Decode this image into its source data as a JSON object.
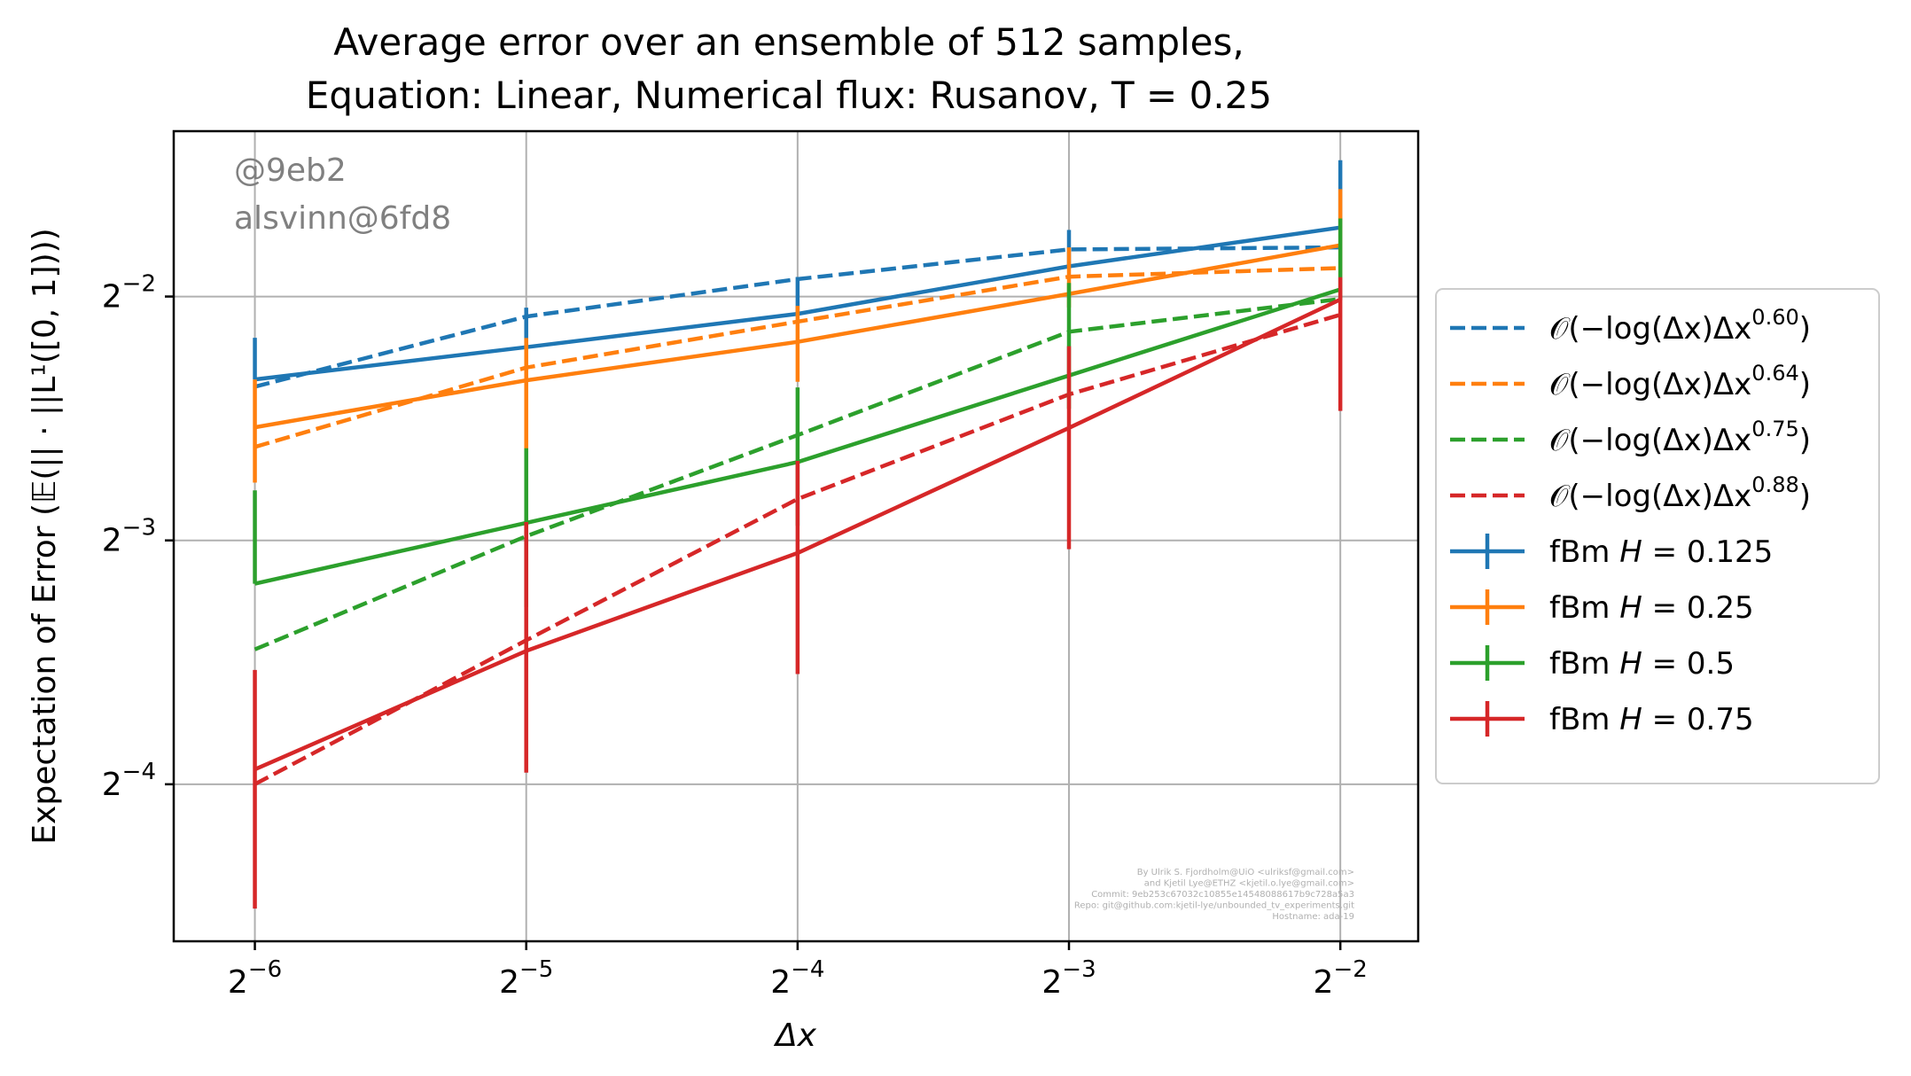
{
  "chart_data": {
    "type": "line",
    "title_lines": [
      "Average error over an ensemble of 512 samples,",
      "Equation: Linear, Numerical flux: Rusanov, T = 0.25"
    ],
    "xlabel": "Δx",
    "ylabel": "Expectation of Error (𝔼(|| · ||L¹([0, 1])))",
    "x_scale": "log2",
    "y_scale": "log2",
    "x_ticks": [
      {
        "value": 0.015625,
        "base": "2",
        "exp": "−6"
      },
      {
        "value": 0.03125,
        "base": "2",
        "exp": "−5"
      },
      {
        "value": 0.0625,
        "base": "2",
        "exp": "−4"
      },
      {
        "value": 0.125,
        "base": "2",
        "exp": "−3"
      },
      {
        "value": 0.25,
        "base": "2",
        "exp": "−2"
      }
    ],
    "y_ticks": [
      {
        "value": 0.25,
        "base": "2",
        "exp": "−2"
      },
      {
        "value": 0.125,
        "base": "2",
        "exp": "−3"
      },
      {
        "value": 0.0625,
        "base": "2",
        "exp": "−4"
      }
    ],
    "xlim": [
      0.0127,
      0.305
    ],
    "ylim": [
      0.04,
      0.4
    ],
    "grid": true,
    "legend_placement": "right outside",
    "annotations": [
      "@9eb2",
      "alsvinn@6fd8"
    ],
    "credits": [
      "By Ulrik S. Fjordholm@UiO <ulriksf@gmail.com>",
      "and Kjetil Lye@ETHZ <kjetil.o.lye@gmail.com>",
      "Commit: 9eb253c67032c10855e14548088617b9c728a5a3",
      "Repo: git@github.com:kjetil-lye/unbounded_tv_experiments.git",
      "Hostname: ada-19"
    ],
    "x": [
      0.015625,
      0.03125,
      0.0625,
      0.125,
      0.25
    ],
    "series": [
      {
        "name": "𝒪(−log(Δx)Δx",
        "name_sup": "0.60",
        "name_tail": ")",
        "color": "#1f77b4",
        "style": "dashed",
        "values": [
          0.1935,
          0.2362,
          0.2627,
          0.2858,
          0.2875
        ]
      },
      {
        "name": "𝒪(−log(Δx)Δx",
        "name_sup": "0.64",
        "name_tail": ")",
        "color": "#ff7f0e",
        "style": "dashed",
        "values": [
          0.163,
          0.2043,
          0.2328,
          0.2645,
          0.2711
        ]
      },
      {
        "name": "𝒪(−log(Δx)Δx",
        "name_sup": "0.75",
        "name_tail": ")",
        "color": "#2ca02c",
        "style": "dashed",
        "values": [
          0.0917,
          0.1265,
          0.1686,
          0.2262,
          0.2483
        ]
      },
      {
        "name": "𝒪(−log(Δx)Δx",
        "name_sup": "0.88",
        "name_tail": ")",
        "color": "#d62728",
        "style": "dashed",
        "values": [
          0.0625,
          0.0941,
          0.1406,
          0.1893,
          0.2374
        ]
      },
      {
        "name": "fBm ",
        "name_italic": "H",
        "name_tail": " = 0.125",
        "color": "#1f77b4",
        "style": "solid",
        "values": [
          0.1975,
          0.2165,
          0.238,
          0.2724,
          0.3042
        ],
        "yerr_low": [
          0.1975,
          0.2165,
          0.238,
          0.2724,
          0.3042
        ],
        "yerr_high": [
          0.2223,
          0.2422,
          0.2643,
          0.3021,
          0.3683
        ]
      },
      {
        "name": "fBm ",
        "name_italic": "H",
        "name_tail": " = 0.25",
        "color": "#ff7f0e",
        "style": "solid",
        "values": [
          0.1724,
          0.197,
          0.2198,
          0.2519,
          0.2892
        ],
        "yerr_low": [
          0.1473,
          0.1618,
          0.1962,
          0.2424,
          0.2641
        ],
        "yerr_high": [
          0.1975,
          0.2222,
          0.2434,
          0.2875,
          0.3393
        ]
      },
      {
        "name": "fBm ",
        "name_italic": "H",
        "name_tail": " = 0.5",
        "color": "#2ca02c",
        "style": "solid",
        "values": [
          0.1105,
          0.1314,
          0.1562,
          0.1997,
          0.2551
        ],
        "yerr_low": [
          0.1105,
          0.1034,
          0.1303,
          0.1817,
          0.2475
        ],
        "yerr_high": [
          0.1441,
          0.1624,
          0.1931,
          0.2598,
          0.3121
        ]
      },
      {
        "name": "fBm ",
        "name_italic": "H",
        "name_tail": " = 0.75",
        "color": "#d62728",
        "style": "solid",
        "values": [
          0.0652,
          0.0913,
          0.1206,
          0.1721,
          0.2479
        ],
        "yerr_low": [
          0.0439,
          0.0646,
          0.0855,
          0.1219,
          0.1806
        ],
        "yerr_high": [
          0.0865,
          0.1317,
          0.1567,
          0.2171,
          0.2641
        ]
      }
    ]
  }
}
